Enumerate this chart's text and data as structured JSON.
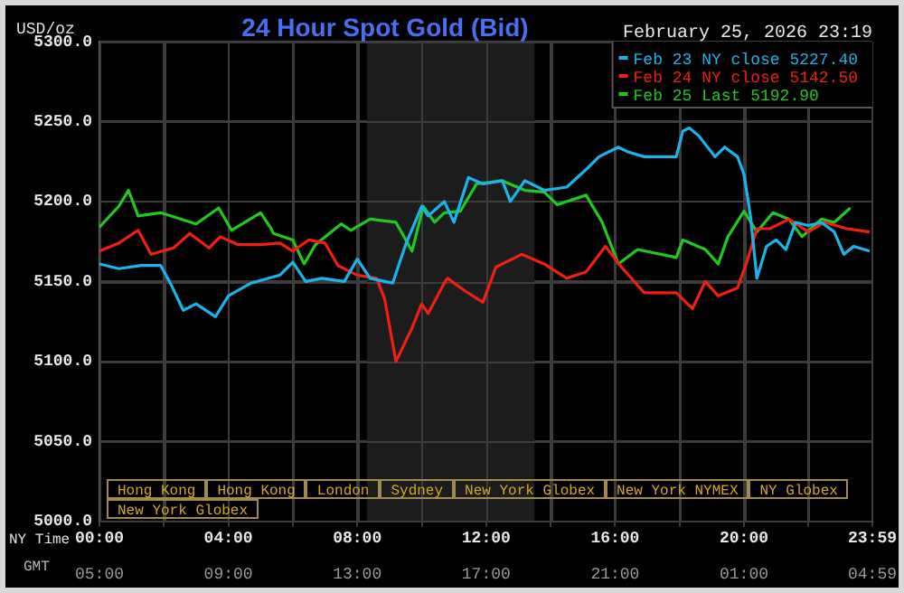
{
  "chart_data": {
    "type": "line",
    "title": "24 Hour Spot Gold (Bid)",
    "subtitle": "February 25, 2026 23:19",
    "ylabel": "USD/oz",
    "xlabel": "NY Time",
    "x2label": "GMT",
    "xlim": [
      0,
      23.983
    ],
    "xticks": [
      {
        "value": 0,
        "label": "00:00"
      },
      {
        "value": 2,
        "label": null
      },
      {
        "value": 4,
        "label": "04:00"
      },
      {
        "value": 6,
        "label": null
      },
      {
        "value": 8,
        "label": "08:00"
      },
      {
        "value": 10,
        "label": null
      },
      {
        "value": 12,
        "label": "12:00"
      },
      {
        "value": 14,
        "label": null
      },
      {
        "value": 16,
        "label": "16:00"
      },
      {
        "value": 18,
        "label": null
      },
      {
        "value": 20,
        "label": "20:00"
      },
      {
        "value": 22,
        "label": null
      },
      {
        "value": 23.983,
        "label": "23:59"
      }
    ],
    "x2lim": [
      "2026-02-25T05:00",
      "2026-02-26T04:59"
    ],
    "x2ticks": [
      {
        "value": "2026-02-25T05:00",
        "label": "05:00"
      },
      {
        "value": "2026-02-25T09:00",
        "label": "09:00"
      },
      {
        "value": "2026-02-25T13:00",
        "label": "13:00"
      },
      {
        "value": "2026-02-25T17:00",
        "label": "17:00"
      },
      {
        "value": "2026-02-25T21:00",
        "label": "21:00"
      },
      {
        "value": "2026-02-26T01:00",
        "label": "01:00"
      },
      {
        "value": "2026-02-26T04:59",
        "label": "04:59"
      }
    ],
    "ylim": [
      5000,
      5300
    ],
    "yticks": [
      {
        "value": 5000,
        "label": "5000.0"
      },
      {
        "value": 5050,
        "label": "5050.0"
      },
      {
        "value": 5100,
        "label": "5100.0"
      },
      {
        "value": 5150,
        "label": "5150.0"
      },
      {
        "value": 5200,
        "label": "5200.0"
      },
      {
        "value": 5250,
        "label": "5250.0"
      },
      {
        "value": 5300,
        "label": "5300.0"
      }
    ],
    "grid": true,
    "legend": "top right",
    "marker": "none",
    "line_style": "solid",
    "bands": [
      {
        "axis": "x",
        "from": 8.3,
        "to": 13.5,
        "color": "#1c1c1c"
      }
    ],
    "annotations": [
      "Hong Kong",
      "Hong Kong",
      "London",
      "Sydney",
      "New York Globex",
      "New York NYMEX",
      "NY Globex",
      "New York Globex"
    ],
    "series": [
      {
        "name": "Feb 23 NY close 5227.40",
        "color": "#1ab4ea",
        "x": [
          0,
          0.6,
          1.3,
          1.9,
          2.2,
          2.6,
          3.0,
          3.6,
          4.0,
          4.7,
          5.6,
          6.0,
          6.4,
          6.9,
          7.6,
          8.0,
          8.4,
          9.1,
          9.5,
          10.0,
          10.2,
          10.7,
          11.0,
          11.45,
          11.9,
          12.5,
          12.75,
          13.2,
          13.8,
          14.5,
          15.1,
          15.5,
          16.1,
          16.4,
          16.9,
          17.9,
          18.1,
          18.3,
          18.6,
          19.1,
          19.4,
          19.8,
          20.0,
          20.2,
          20.4,
          20.7,
          21.0,
          21.3,
          21.6,
          22.0,
          22.4,
          22.8,
          23.1,
          23.4,
          23.9
        ],
        "values": [
          5161,
          5158,
          5160,
          5160,
          5149,
          5132,
          5136,
          5128,
          5141,
          5149,
          5154,
          5162,
          5150,
          5152,
          5150,
          5164,
          5152,
          5149,
          5173,
          5197,
          5191,
          5200,
          5187,
          5215,
          5211,
          5213,
          5200,
          5213,
          5207,
          5209,
          5220,
          5228,
          5234,
          5231,
          5228,
          5228,
          5244,
          5246,
          5241,
          5228,
          5234,
          5228,
          5217,
          5191,
          5152,
          5172,
          5176,
          5170,
          5187,
          5185,
          5187,
          5181,
          5167,
          5172,
          5169
        ]
      },
      {
        "name": "Feb 24 NY close 5142.50",
        "color": "#f02010",
        "x": [
          0,
          0.6,
          1.2,
          1.6,
          2.3,
          2.8,
          3.4,
          3.75,
          4.3,
          5.0,
          5.6,
          6.0,
          6.5,
          7.0,
          7.4,
          8.0,
          8.6,
          8.85,
          9.2,
          9.7,
          10.0,
          10.2,
          10.7,
          10.8,
          11.35,
          11.9,
          12.3,
          13.1,
          13.8,
          14.5,
          15.1,
          15.7,
          16.2,
          16.9,
          17.9,
          18.4,
          18.8,
          19.2,
          19.8,
          20.1,
          20.4,
          20.8,
          21.4,
          22.0,
          22.5,
          23.2,
          23.9
        ],
        "values": [
          5169,
          5174,
          5182,
          5167,
          5171,
          5180,
          5171,
          5178,
          5173,
          5173,
          5174,
          5169,
          5176,
          5174,
          5160,
          5154,
          5152,
          5139,
          5100,
          5121,
          5136,
          5130,
          5149,
          5152,
          5144,
          5137,
          5159,
          5167,
          5161,
          5152,
          5156,
          5172,
          5159,
          5143,
          5143,
          5133,
          5150,
          5141,
          5146,
          5163,
          5183,
          5183,
          5189,
          5181,
          5187,
          5183,
          5181
        ]
      },
      {
        "name": "Feb 25 Last 5192.90",
        "color": "#20c820",
        "x": [
          0,
          0.6,
          0.9,
          1.2,
          1.9,
          3.0,
          3.7,
          4.1,
          5.0,
          5.3,
          5.4,
          6.0,
          6.35,
          6.7,
          7.5,
          7.8,
          8.4,
          9.2,
          9.7,
          10.05,
          10.4,
          10.7,
          11.2,
          11.7,
          12.5,
          13.2,
          13.8,
          14.2,
          15.1,
          15.6,
          16.1,
          16.7,
          17.9,
          18.1,
          18.8,
          19.2,
          19.5,
          20.0,
          20.4,
          20.9,
          21.4,
          21.8,
          22.4,
          22.8,
          23.3
        ],
        "values": [
          5184,
          5197,
          5207,
          5191,
          5193,
          5186,
          5196,
          5182,
          5193,
          5184,
          5180,
          5176,
          5161,
          5173,
          5186,
          5182,
          5189,
          5187,
          5169,
          5197,
          5187,
          5193,
          5194,
          5211,
          5213,
          5207,
          5206,
          5198,
          5204,
          5187,
          5161,
          5170,
          5165,
          5176,
          5170,
          5161,
          5178,
          5194,
          5181,
          5193,
          5189,
          5178,
          5189,
          5187,
          5196
        ]
      }
    ]
  }
}
